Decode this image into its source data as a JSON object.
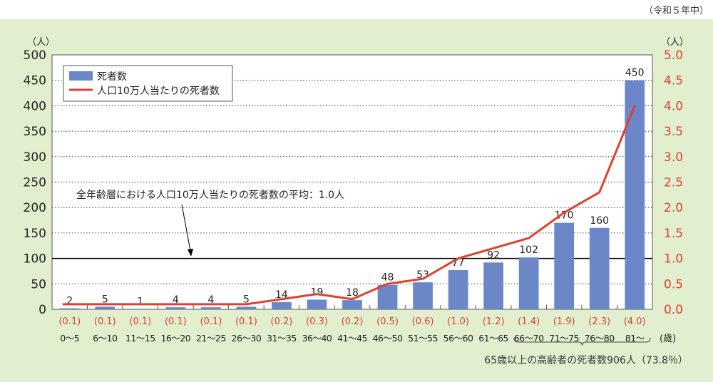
{
  "note": "（令和５年中）",
  "chart_data": {
    "type": "bar+line",
    "categories": [
      "0～5",
      "6～10",
      "11～15",
      "16～20",
      "21～25",
      "26～30",
      "31～35",
      "36～40",
      "41～45",
      "46～50",
      "51～55",
      "56～60",
      "61～65",
      "66～70",
      "71～75",
      "76～80",
      "81～"
    ],
    "x_unit": "(歳)",
    "series": [
      {
        "name": "死者数",
        "type": "bar",
        "axis": "left",
        "color": "#6b87c8",
        "values": [
          2,
          5,
          1,
          4,
          4,
          5,
          14,
          19,
          18,
          48,
          53,
          77,
          92,
          102,
          170,
          160,
          450
        ]
      },
      {
        "name": "人口10万人当たりの死者数",
        "type": "line",
        "axis": "right",
        "color": "#e04030",
        "values": [
          0.1,
          0.1,
          0.1,
          0.1,
          0.1,
          0.1,
          0.2,
          0.3,
          0.2,
          0.5,
          0.6,
          1.0,
          1.2,
          1.4,
          1.9,
          2.3,
          4.0
        ]
      }
    ],
    "rate_labels": [
      "(0.1)",
      "(0.1)",
      "(0.1)",
      "(0.1)",
      "(0.1)",
      "(0.1)",
      "(0.2)",
      "(0.3)",
      "(0.2)",
      "(0.5)",
      "(0.6)",
      "(1.0)",
      "(1.2)",
      "(1.4)",
      "(1.9)",
      "(2.3)",
      "(4.0)"
    ],
    "y_left": {
      "unit": "（人）",
      "range": [
        0,
        500
      ],
      "ticks": [
        "0",
        "50",
        "100",
        "150",
        "200",
        "250",
        "300",
        "350",
        "400",
        "450",
        "500"
      ]
    },
    "y_right": {
      "unit": "（人）",
      "range": [
        0,
        5
      ],
      "ticks": [
        "0.0",
        "0.5",
        "1.0",
        "1.5",
        "2.0",
        "2.5",
        "3.0",
        "3.5",
        "4.0",
        "4.5",
        "5.0"
      ]
    },
    "grid": "dotted horizontal",
    "legend_position": "top-left",
    "reference_line": {
      "value": 100,
      "label": "全年齢層における人口10万人当たりの死者数の平均：1.0人"
    },
    "bracket_annotation": "65歳以上の高齢者の死者数906人（73.8％）"
  }
}
